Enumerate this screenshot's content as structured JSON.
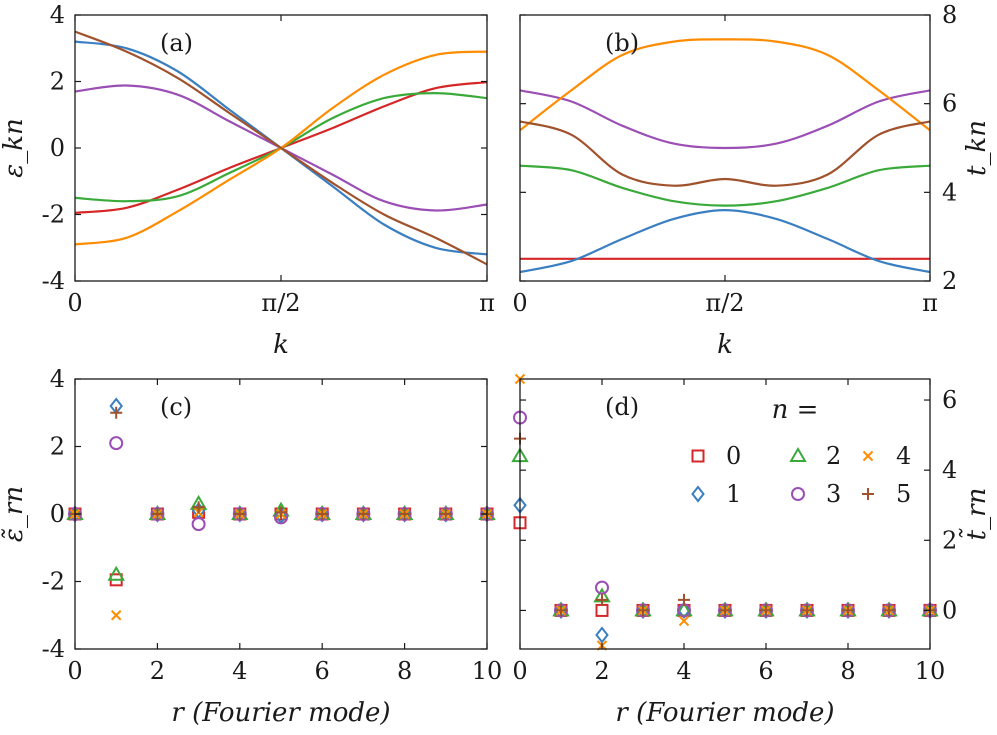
{
  "colors": {
    "n0": "#d62728",
    "n1": "#3a7fc1",
    "n2": "#3aaa3a",
    "n3": "#9b4fb5",
    "n4": "#ff8c00",
    "n5": "#a0522d",
    "frame": "#1a1a1a"
  },
  "chart_data": [
    {
      "type": "line",
      "panel": "(a)",
      "xlabel": "k",
      "ylabel": "ε_kn",
      "xlim": [
        0,
        3.14159
      ],
      "ylim": [
        -4,
        4
      ],
      "xticks": [
        0,
        1.5708,
        3.14159
      ],
      "xtick_labels": [
        "0",
        "π/2",
        "π"
      ],
      "yticks": [
        -4,
        -2,
        0,
        2,
        4
      ],
      "ytick_labels": [
        "-4",
        "-2",
        "0",
        "2",
        "4"
      ],
      "x": [
        0,
        0.3927,
        0.7854,
        1.1781,
        1.5708,
        1.9635,
        2.3562,
        2.7489,
        3.14159
      ],
      "series": [
        {
          "name": "n=0",
          "color_key": "n0",
          "values": [
            -1.95,
            -1.8,
            -1.25,
            -0.6,
            0,
            0.6,
            1.25,
            1.8,
            1.98
          ]
        },
        {
          "name": "n=1",
          "color_key": "n1",
          "values": [
            3.2,
            3.0,
            2.3,
            1.15,
            0,
            -1.15,
            -2.3,
            -3.0,
            -3.2
          ]
        },
        {
          "name": "n=2",
          "color_key": "n2",
          "values": [
            -1.5,
            -1.6,
            -1.45,
            -0.75,
            0,
            0.9,
            1.5,
            1.65,
            1.5
          ]
        },
        {
          "name": "n=3",
          "color_key": "n3",
          "values": [
            1.7,
            1.88,
            1.6,
            0.8,
            0,
            -0.8,
            -1.6,
            -1.88,
            -1.7
          ]
        },
        {
          "name": "n=4",
          "color_key": "n4",
          "values": [
            -2.9,
            -2.7,
            -1.9,
            -0.95,
            0,
            1.2,
            2.2,
            2.8,
            2.9
          ]
        },
        {
          "name": "n=5",
          "color_key": "n5",
          "values": [
            3.5,
            2.9,
            2.1,
            1.05,
            0,
            -1.05,
            -2.0,
            -2.7,
            -3.5
          ]
        }
      ]
    },
    {
      "type": "line",
      "panel": "(b)",
      "xlabel": "k",
      "ylabel": "t_kn",
      "xlim": [
        0,
        3.14159
      ],
      "ylim": [
        2,
        8
      ],
      "xticks": [
        0,
        1.5708,
        3.14159
      ],
      "xtick_labels": [
        "0",
        "π/2",
        "π"
      ],
      "yticks": [
        2,
        4,
        6,
        8
      ],
      "ytick_labels": [
        "2",
        "4",
        "6",
        "8"
      ],
      "x": [
        0,
        0.3927,
        0.7854,
        1.1781,
        1.5708,
        1.9635,
        2.3562,
        2.7489,
        3.14159
      ],
      "series": [
        {
          "name": "n=0",
          "color_key": "n0",
          "values": [
            2.5,
            2.5,
            2.5,
            2.5,
            2.5,
            2.5,
            2.5,
            2.5,
            2.5
          ]
        },
        {
          "name": "n=1",
          "color_key": "n1",
          "values": [
            2.2,
            2.45,
            2.95,
            3.4,
            3.6,
            3.4,
            2.95,
            2.45,
            2.2
          ]
        },
        {
          "name": "n=2",
          "color_key": "n2",
          "values": [
            4.6,
            4.5,
            4.1,
            3.8,
            3.7,
            3.8,
            4.1,
            4.5,
            4.6
          ]
        },
        {
          "name": "n=3",
          "color_key": "n3",
          "values": [
            6.3,
            6.05,
            5.5,
            5.1,
            5.0,
            5.1,
            5.5,
            6.05,
            6.3
          ]
        },
        {
          "name": "n=4",
          "color_key": "n4",
          "values": [
            5.4,
            6.3,
            7.1,
            7.4,
            7.45,
            7.4,
            7.1,
            6.3,
            5.4
          ]
        },
        {
          "name": "n=5",
          "color_key": "n5",
          "values": [
            5.6,
            5.3,
            4.4,
            4.15,
            4.3,
            4.15,
            4.4,
            5.3,
            5.6
          ]
        }
      ]
    },
    {
      "type": "scatter",
      "panel": "(c)",
      "xlabel": "r (Fourier mode)",
      "ylabel": "ε̃_rn",
      "xlim": [
        0,
        10
      ],
      "ylim": [
        -4,
        4
      ],
      "xticks": [
        0,
        2,
        4,
        6,
        8,
        10
      ],
      "xtick_labels": [
        "0",
        "2",
        "4",
        "6",
        "8",
        "10"
      ],
      "yticks": [
        -4,
        -2,
        0,
        2,
        4
      ],
      "ytick_labels": [
        "-4",
        "-2",
        "0",
        "2",
        "4"
      ],
      "x": [
        0,
        1,
        2,
        3,
        4,
        5,
        6,
        7,
        8,
        9,
        10
      ],
      "series": [
        {
          "name": "0",
          "marker": "square",
          "color_key": "n0",
          "values": [
            0,
            -1.95,
            0,
            0.05,
            0,
            0,
            0,
            0,
            0,
            0,
            0
          ]
        },
        {
          "name": "1",
          "marker": "diamond",
          "color_key": "n1",
          "values": [
            0,
            3.2,
            0,
            0.1,
            0,
            -0.05,
            0,
            0,
            0,
            0,
            0
          ]
        },
        {
          "name": "2",
          "marker": "triangle",
          "color_key": "n2",
          "values": [
            0,
            -1.8,
            0,
            0.3,
            0,
            0.1,
            0,
            0,
            0,
            0,
            0
          ]
        },
        {
          "name": "3",
          "marker": "circle",
          "color_key": "n3",
          "values": [
            0,
            2.1,
            0,
            -0.3,
            0,
            -0.1,
            0,
            0,
            0,
            0,
            0
          ]
        },
        {
          "name": "4",
          "marker": "x",
          "color_key": "n4",
          "values": [
            0,
            -3.0,
            0,
            0.05,
            0,
            0,
            0,
            0,
            0,
            0,
            0
          ]
        },
        {
          "name": "5",
          "marker": "plus",
          "color_key": "n5",
          "values": [
            0,
            3.0,
            0,
            0.2,
            0,
            0.05,
            0,
            0,
            0,
            0,
            0
          ]
        }
      ]
    },
    {
      "type": "scatter",
      "panel": "(d)",
      "xlabel": "r (Fourier mode)",
      "ylabel": "t̃_rn",
      "legend_title": "n =",
      "legend_position": "top-right",
      "xlim": [
        0,
        10
      ],
      "ylim": [
        -1.1,
        6.6
      ],
      "xticks": [
        0,
        2,
        4,
        6,
        8,
        10
      ],
      "xtick_labels": [
        "0",
        "2",
        "4",
        "6",
        "8",
        "10"
      ],
      "yticks": [
        0,
        2,
        4,
        6
      ],
      "ytick_labels": [
        "0",
        "2",
        "4",
        "6"
      ],
      "x": [
        0,
        1,
        2,
        3,
        4,
        5,
        6,
        7,
        8,
        9,
        10
      ],
      "series": [
        {
          "name": "0",
          "marker": "square",
          "color_key": "n0",
          "values": [
            2.5,
            0,
            0,
            0,
            0,
            0,
            0,
            0,
            0,
            0,
            0
          ]
        },
        {
          "name": "1",
          "marker": "diamond",
          "color_key": "n1",
          "values": [
            3.0,
            0,
            -0.7,
            0,
            0,
            0,
            0,
            0,
            0,
            0,
            0
          ]
        },
        {
          "name": "2",
          "marker": "triangle",
          "color_key": "n2",
          "values": [
            4.4,
            0,
            0.4,
            0,
            0,
            0,
            0,
            0,
            0,
            0,
            0
          ]
        },
        {
          "name": "3",
          "marker": "circle",
          "color_key": "n3",
          "values": [
            5.5,
            0,
            0.65,
            0,
            0,
            0,
            0,
            0,
            0,
            0,
            0
          ]
        },
        {
          "name": "4",
          "marker": "x",
          "color_key": "n4",
          "values": [
            6.6,
            0,
            -1.0,
            0,
            -0.3,
            0,
            0,
            0,
            0,
            0,
            0
          ]
        },
        {
          "name": "5",
          "marker": "plus",
          "color_key": "n5",
          "values": [
            4.9,
            0,
            0.3,
            0,
            0.3,
            0,
            0,
            0,
            0,
            0,
            0
          ]
        }
      ]
    }
  ]
}
